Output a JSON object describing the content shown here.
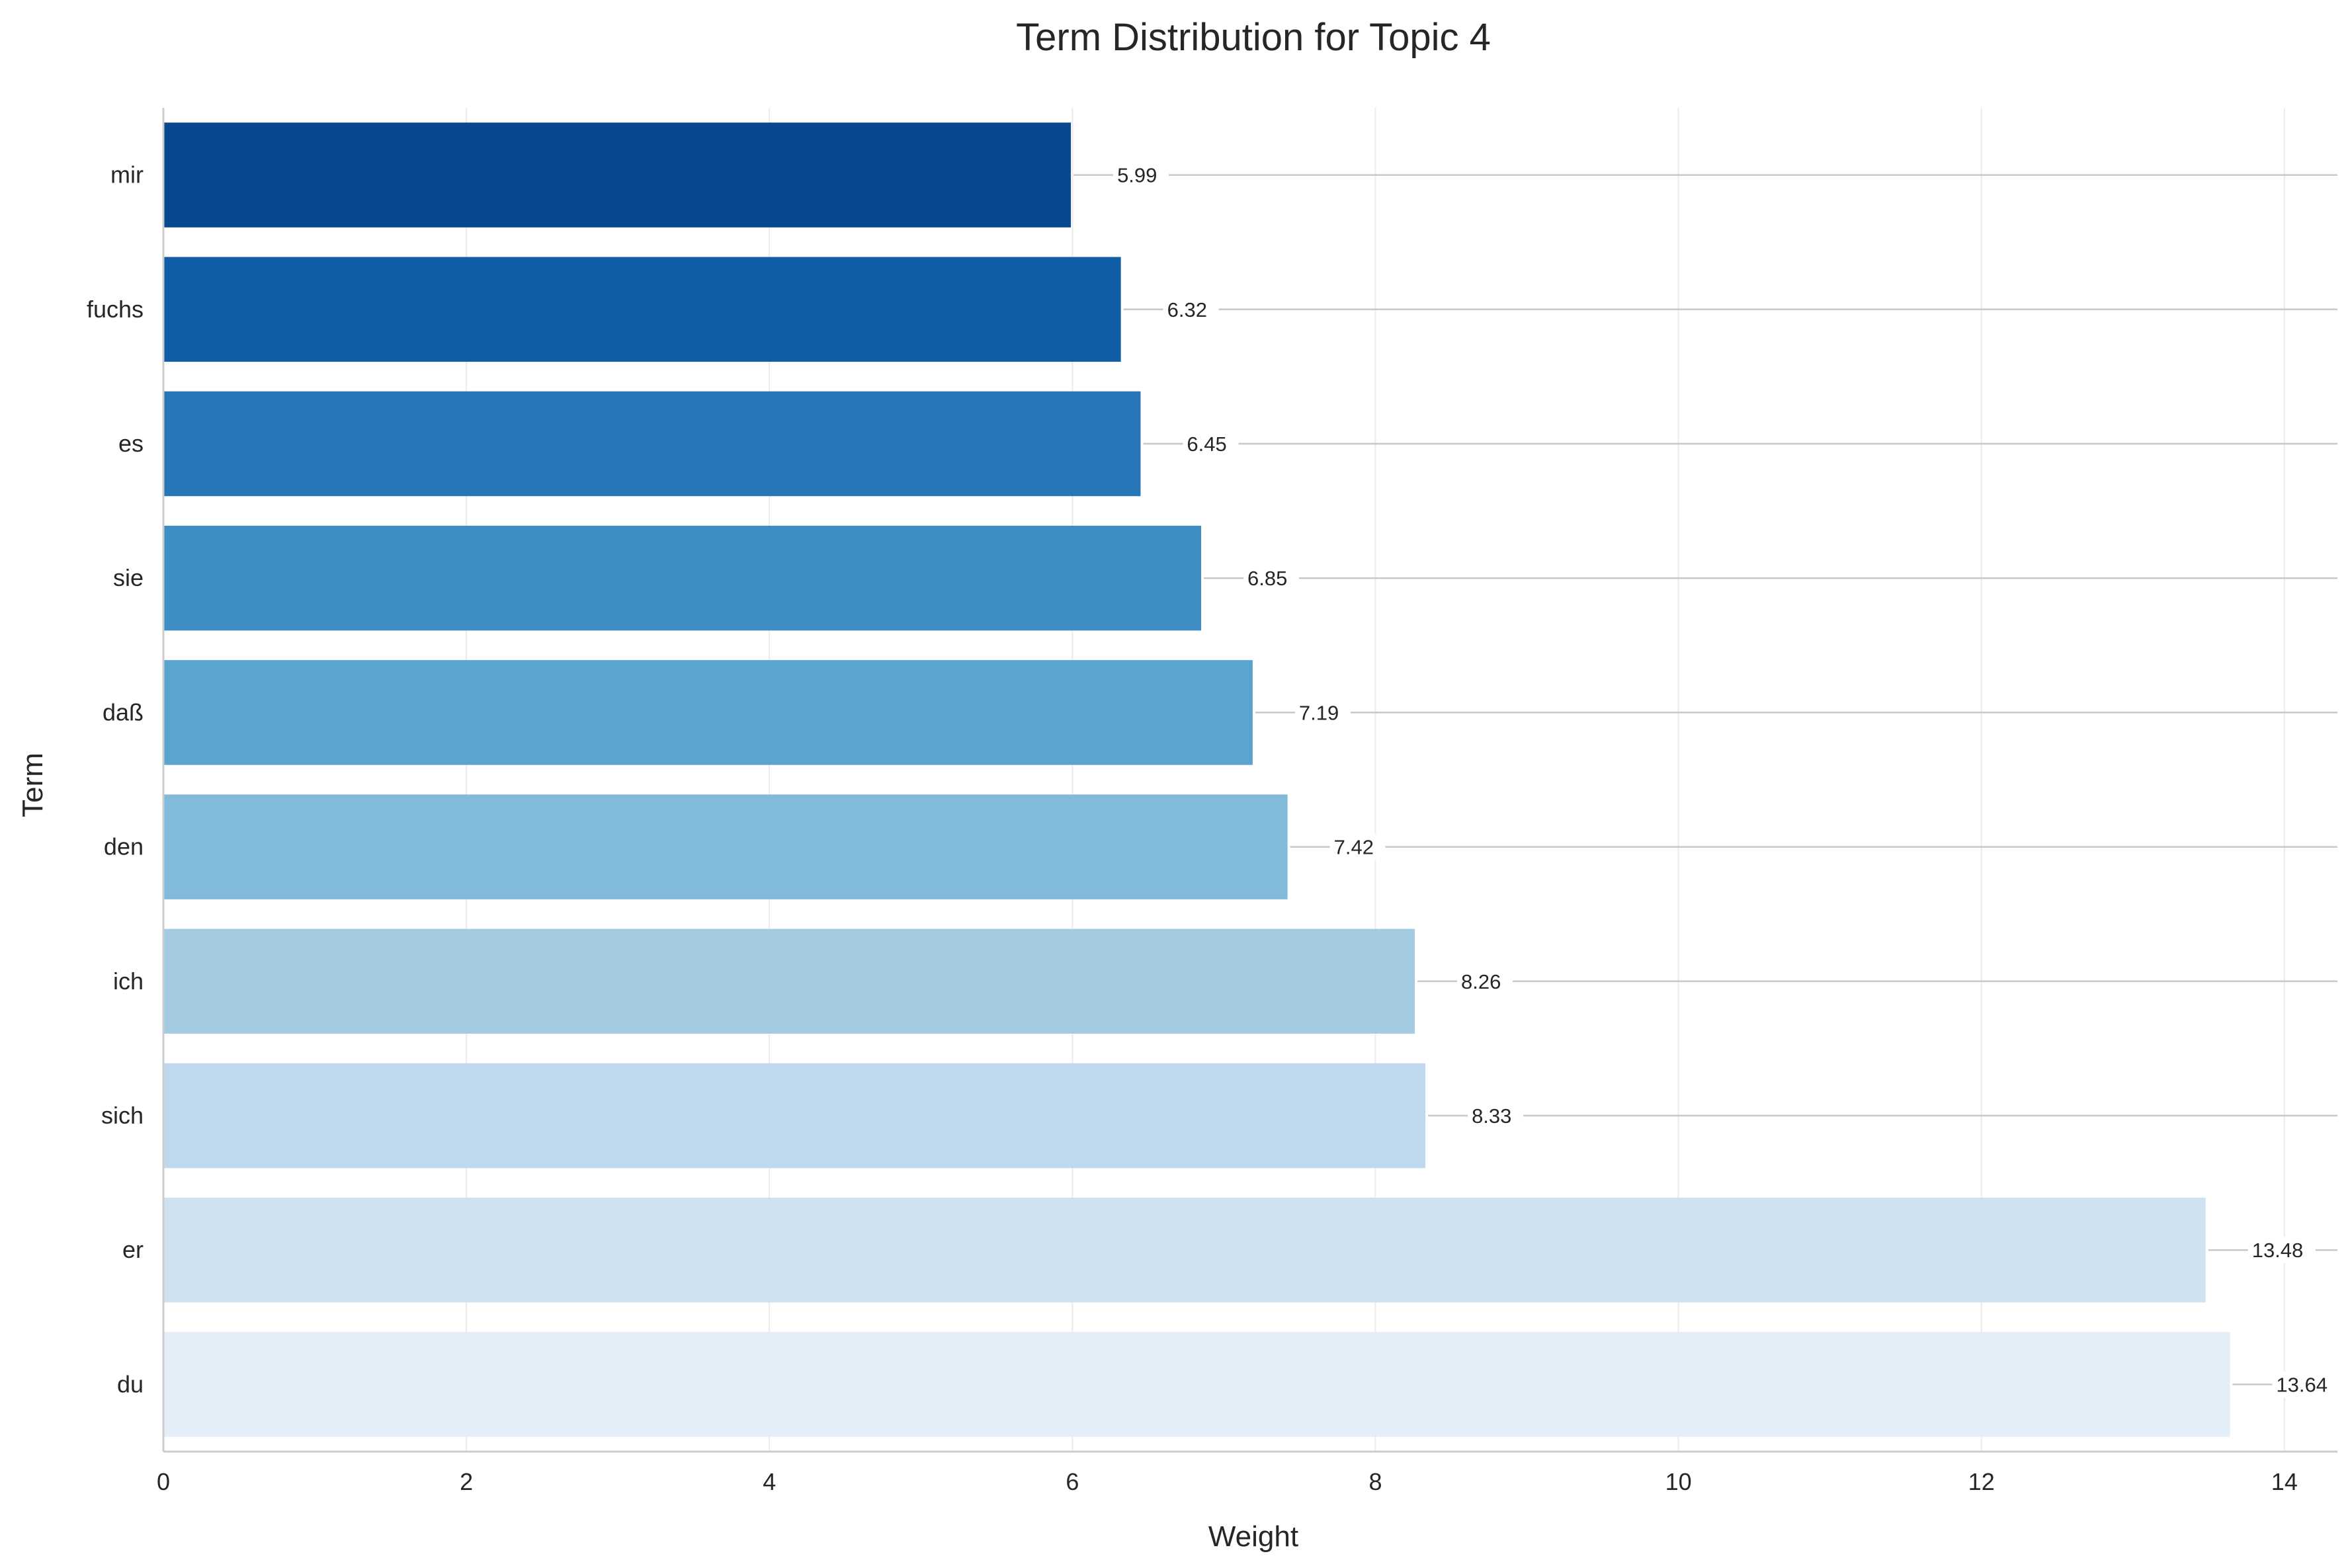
{
  "chart_data": {
    "type": "bar",
    "orientation": "horizontal",
    "title": "Term Distribution for Topic 4",
    "xlabel": "Weight",
    "ylabel": "Term",
    "categories": [
      "du",
      "er",
      "sich",
      "ich",
      "den",
      "daß",
      "sie",
      "es",
      "fuchs",
      "mir"
    ],
    "values": [
      13.64,
      13.48,
      8.33,
      8.26,
      7.42,
      7.19,
      6.85,
      6.45,
      6.32,
      5.99
    ],
    "value_labels": [
      "13.64",
      "13.48",
      "8.33",
      "8.26",
      "7.42",
      "7.19",
      "6.85",
      "6.45",
      "6.32",
      "5.99"
    ],
    "colors": [
      "#e3eef9",
      "#d0e1f2",
      "#bfd8ed",
      "#a3cce3",
      "#82badb",
      "#5ca4d0",
      "#3e8ec4",
      "#2676b8",
      "#125ea6",
      "#08488e"
    ],
    "xlim": [
      0,
      14.35
    ],
    "xticks": [
      0,
      2,
      4,
      6,
      8,
      10,
      12,
      14
    ],
    "grid": true,
    "legend": "none"
  }
}
